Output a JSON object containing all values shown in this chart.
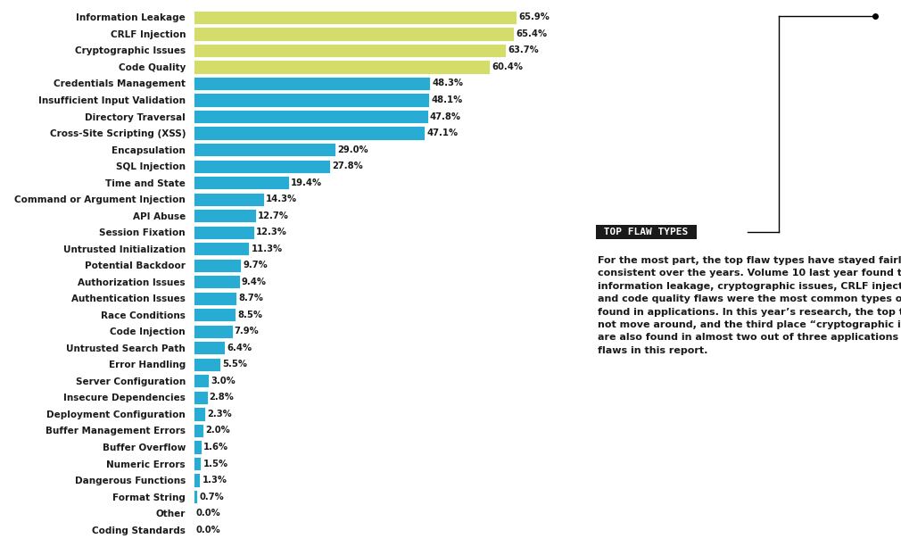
{
  "categories": [
    "Information Leakage",
    "CRLF Injection",
    "Cryptographic Issues",
    "Code Quality",
    "Credentials Management",
    "Insufficient Input Validation",
    "Directory Traversal",
    "Cross-Site Scripting (XSS)",
    "Encapsulation",
    "SQL Injection",
    "Time and State",
    "Command or Argument Injection",
    "API Abuse",
    "Session Fixation",
    "Untrusted Initialization",
    "Potential Backdoor",
    "Authorization Issues",
    "Authentication Issues",
    "Race Conditions",
    "Code Injection",
    "Untrusted Search Path",
    "Error Handling",
    "Server Configuration",
    "Insecure Dependencies",
    "Deployment Configuration",
    "Buffer Management Errors",
    "Buffer Overflow",
    "Numeric Errors",
    "Dangerous Functions",
    "Format String",
    "Other",
    "Coding Standards"
  ],
  "values": [
    65.9,
    65.4,
    63.7,
    60.4,
    48.3,
    48.1,
    47.8,
    47.1,
    29.0,
    27.8,
    19.4,
    14.3,
    12.7,
    12.3,
    11.3,
    9.7,
    9.4,
    8.7,
    8.5,
    7.9,
    6.4,
    5.5,
    3.0,
    2.8,
    2.3,
    2.0,
    1.6,
    1.5,
    1.3,
    0.7,
    0.0,
    0.0
  ],
  "bar_color_yellow": "#d4dc6a",
  "bar_color_blue": "#29acd4",
  "yellow_count": 4,
  "bg_color": "#ffffff",
  "label_color": "#1a1a1a",
  "value_color": "#1a1a1a",
  "annotation_title": "TOP FLAW TYPES",
  "annotation_box_color": "#1a1a1a",
  "annotation_title_color": "#ffffff",
  "body_text_color": "#1a1a1a",
  "body_text": "For the most part, the top flaw types have stayed fairly\nconsistent over the years. Volume 10 last year found that\ninformation leakage, cryptographic issues, CRLF injection,\nand code quality flaws were the most common types of flaws\nfound in applications. In this year’s research, the top three did\nnot move around, and the third place “cryptographic issues”\nare also found in almost two out of three applications with\nflaws in this report.",
  "fig_width": 10.1,
  "fig_height": 6.13,
  "dpi": 100
}
